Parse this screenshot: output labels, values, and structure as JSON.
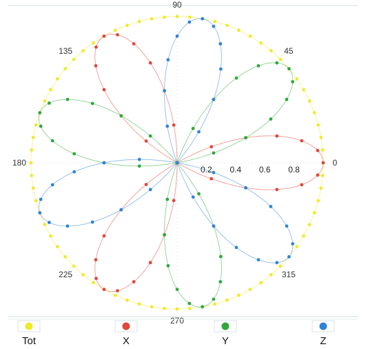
{
  "chart_data": {
    "type": "polar-scatter",
    "angle_ticks": [
      "0",
      "45",
      "90",
      "135",
      "180",
      "225",
      "270",
      "315"
    ],
    "radius_ticks": [
      "0.2",
      "0.4",
      "0.6",
      "0.8"
    ],
    "rlim": [
      0,
      1
    ],
    "grid": false,
    "legend_placement": "bottom",
    "series": [
      {
        "name": "Tot",
        "color": "#f1ea2a",
        "pattern": "circle",
        "r": 1.0,
        "count": 72
      },
      {
        "name": "X",
        "color": "#e0463a",
        "pattern": "cos",
        "petals": 3,
        "phase_deg": 0,
        "count": 36
      },
      {
        "name": "Y",
        "color": "#2fa83a",
        "pattern": "cos",
        "petals": 3,
        "phase_deg": 40,
        "count": 36
      },
      {
        "name": "Z",
        "color": "#2f84d8",
        "pattern": "cos",
        "petals": 3,
        "phase_deg": 80,
        "count": 36
      }
    ]
  }
}
